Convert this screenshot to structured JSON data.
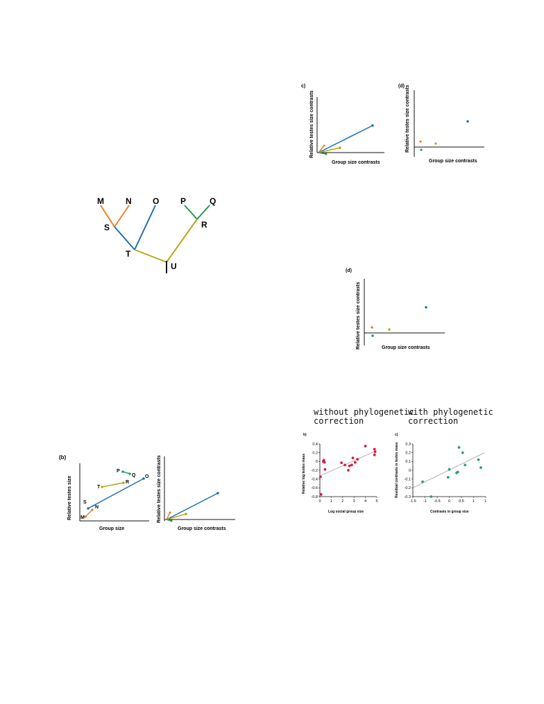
{
  "tree": {
    "tips": [
      "M",
      "N",
      "O",
      "P",
      "Q"
    ],
    "nodes": [
      "S",
      "T",
      "R",
      "U"
    ]
  },
  "panel_b": {
    "letter": "(b)",
    "left_plot": {
      "ylabel": "Relative testes size",
      "xlabel": "Group size",
      "point_labels": [
        "P",
        "Q",
        "T",
        "R",
        "O",
        "S",
        "N",
        "M"
      ]
    },
    "right_plot": {
      "ylabel": "Relative testes size contrasts",
      "xlabel": "Group size contrasts"
    }
  },
  "panel_c_top": {
    "letter": "c)",
    "ylabel": "Relative testes size contrasts",
    "xlabel": "Group size contrasts"
  },
  "panel_d_top": {
    "letter": "(d)",
    "ylabel": "Relative testes size contrasts",
    "xlabel": "Group size contrasts"
  },
  "panel_d_mid": {
    "letter": "(d)",
    "ylabel": "Relative testes size contrasts",
    "xlabel": "Group size contrasts"
  },
  "captions": {
    "left_line1": "without phylogenetic",
    "left_line2": "correction",
    "right_line1": "with phylogenetic",
    "right_line2": "correction"
  },
  "colors": {
    "orange": "#f07f22",
    "blue": "#1f6fb5",
    "olive": "#b3a81c",
    "green": "#1e9a52",
    "red": "#d8194a",
    "teal": "#27a26d"
  },
  "chart_data": [
    {
      "type": "scatter",
      "letter": "b)",
      "ylabel": "Relative log testes mass",
      "xlabel": "Log social group size",
      "xticks": [
        "0",
        "1",
        "2",
        "3",
        "4",
        "5"
      ],
      "yticks": [
        "0.4",
        "0.2",
        "0",
        "-0.2",
        "-0.4",
        "-0.6",
        "-0.8"
      ],
      "xlim": [
        0,
        5
      ],
      "ylim": [
        -0.8,
        0.4
      ],
      "points": [
        {
          "x": 0.05,
          "y": -0.35
        },
        {
          "x": 0.1,
          "y": -0.75
        },
        {
          "x": 0.3,
          "y": 0.0
        },
        {
          "x": 0.35,
          "y": 0.03
        },
        {
          "x": 0.4,
          "y": -0.02
        },
        {
          "x": 0.45,
          "y": -0.18
        },
        {
          "x": 1.9,
          "y": -0.03
        },
        {
          "x": 2.2,
          "y": -0.08
        },
        {
          "x": 2.5,
          "y": -0.2
        },
        {
          "x": 2.6,
          "y": -0.1
        },
        {
          "x": 2.8,
          "y": -0.08
        },
        {
          "x": 2.9,
          "y": 0.08
        },
        {
          "x": 3.1,
          "y": -0.02
        },
        {
          "x": 3.3,
          "y": 0.05
        },
        {
          "x": 4.0,
          "y": 0.35
        },
        {
          "x": 4.8,
          "y": 0.15
        },
        {
          "x": 4.8,
          "y": 0.28
        },
        {
          "x": 4.85,
          "y": 0.22
        }
      ],
      "fit": {
        "x": [
          0,
          5
        ],
        "y": [
          -0.33,
          0.25
        ]
      }
    },
    {
      "type": "scatter",
      "letter": "c)",
      "ylabel": "Residual contrasts in testes mass",
      "xlabel": "Contrasts in group size",
      "xticks": [
        "-1.5",
        "-1",
        "-0.5",
        "0",
        "0.5",
        "1",
        "1."
      ],
      "yticks": [
        "0.3",
        "0.2",
        "0.1",
        "0",
        "-0.1",
        "-0.2",
        "-0.3"
      ],
      "xlim": [
        -1.5,
        1.5
      ],
      "ylim": [
        -0.3,
        0.3
      ],
      "points": [
        {
          "x": -1.1,
          "y": -0.13
        },
        {
          "x": -0.75,
          "y": -0.3
        },
        {
          "x": -0.05,
          "y": -0.08
        },
        {
          "x": 0.0,
          "y": 0.01
        },
        {
          "x": 0.3,
          "y": -0.03
        },
        {
          "x": 0.35,
          "y": -0.02
        },
        {
          "x": 0.4,
          "y": 0.26
        },
        {
          "x": 0.55,
          "y": 0.2
        },
        {
          "x": 0.65,
          "y": 0.06
        },
        {
          "x": 1.2,
          "y": 0.12
        },
        {
          "x": 1.3,
          "y": 0.03
        }
      ],
      "fit": {
        "x": [
          -1.5,
          1.45
        ],
        "y": [
          -0.2,
          0.2
        ]
      }
    }
  ]
}
